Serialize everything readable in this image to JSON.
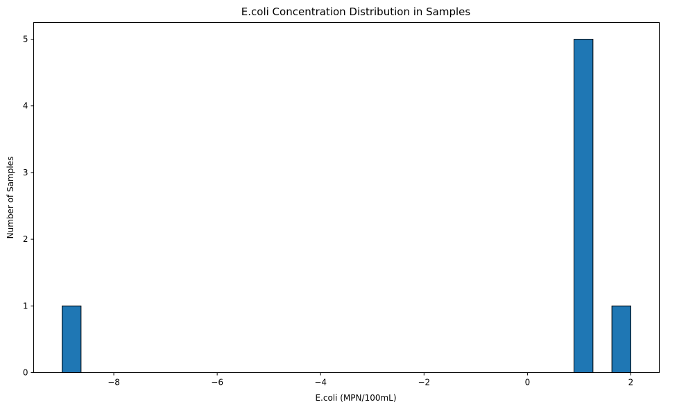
{
  "chart_data": {
    "type": "bar",
    "title": "E.coli Concentration Distribution in Samples",
    "xlabel": "E.coli (MPN/100mL)",
    "ylabel": "Number of Samples",
    "xlim": [
      -9.55,
      2.55
    ],
    "ylim": [
      0,
      5.25
    ],
    "x_ticks": [
      -8,
      -6,
      -4,
      -2,
      0,
      2
    ],
    "x_tick_labels": [
      "−8",
      "−6",
      "−4",
      "−2",
      "0",
      "2"
    ],
    "y_ticks": [
      0,
      1,
      2,
      3,
      4,
      5
    ],
    "y_tick_labels": [
      "0",
      "1",
      "2",
      "3",
      "4",
      "5"
    ],
    "bins": [
      {
        "start": -9.0,
        "end": -8.633,
        "count": 1
      },
      {
        "start": 0.9,
        "end": 1.267,
        "count": 5
      },
      {
        "start": 1.633,
        "end": 2.0,
        "count": 1
      }
    ],
    "bar_color": "#1f77b4",
    "edge_color": "#000000",
    "grid": false,
    "legend": "none"
  }
}
